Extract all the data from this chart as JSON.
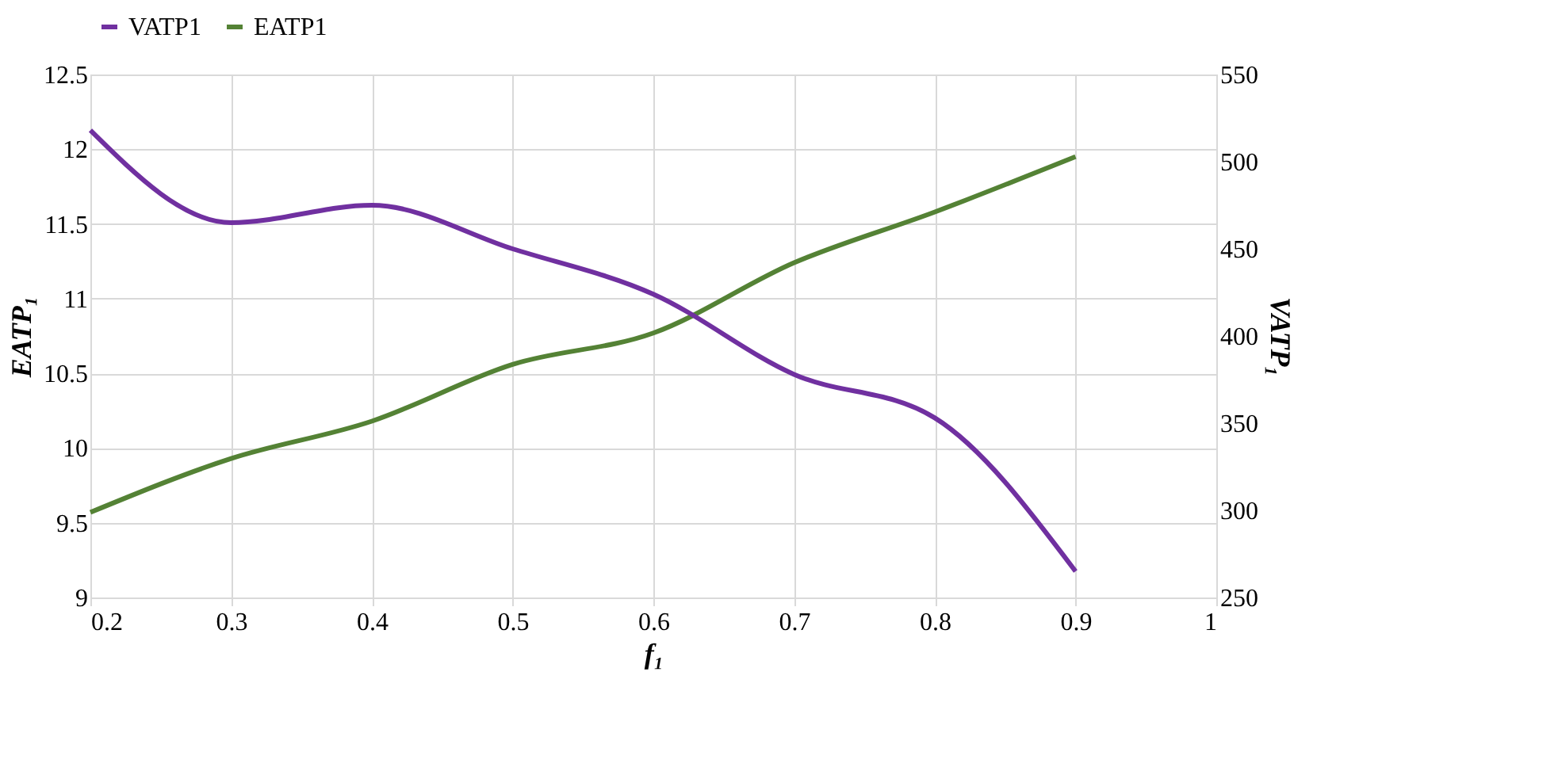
{
  "chart_data": {
    "type": "line",
    "xlabel": "f₁",
    "ylabel": "EATP₁",
    "y2label": "VATP₁",
    "x": [
      0.2,
      0.3,
      0.4,
      0.5,
      0.6,
      0.7,
      0.8,
      0.9
    ],
    "xlim": [
      0.2,
      1
    ],
    "xticks": [
      0.2,
      0.3,
      0.4,
      0.5,
      0.6,
      0.7,
      0.8,
      0.9,
      1
    ],
    "ylim": [
      9,
      12.5
    ],
    "yticks": [
      9,
      9.5,
      10,
      10.5,
      11,
      11.5,
      12,
      12.5
    ],
    "y2lim": [
      250,
      550
    ],
    "y2ticks": [
      250,
      300,
      350,
      400,
      450,
      500,
      550
    ],
    "series": [
      {
        "name": "VATP1",
        "color": "#7030a0",
        "axis": "y2",
        "values": [
          518,
          465,
          475,
          450,
          424,
          378,
          353,
          265
        ]
      },
      {
        "name": "EATP1",
        "color": "#548235",
        "axis": "y",
        "values": [
          9.57,
          9.93,
          10.18,
          10.56,
          10.77,
          11.24,
          11.58,
          11.95
        ]
      }
    ],
    "grid": true,
    "legend": "top",
    "marker": "none",
    "line_style": "solid"
  }
}
